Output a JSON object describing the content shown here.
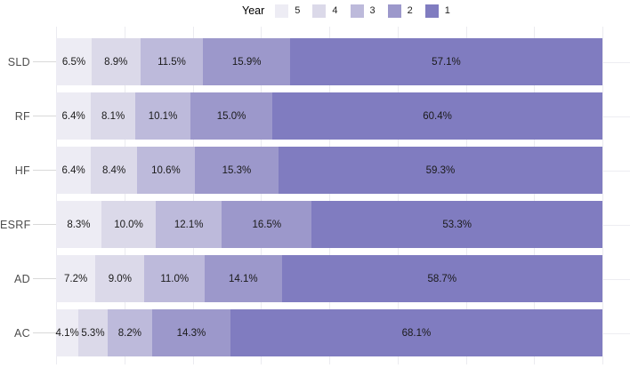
{
  "legend": {
    "title": "Year",
    "entries": [
      {
        "label": "5",
        "color": "#EDECF4"
      },
      {
        "label": "4",
        "color": "#DBD9E9"
      },
      {
        "label": "3",
        "color": "#BDBADB"
      },
      {
        "label": "2",
        "color": "#9C98CB"
      },
      {
        "label": "1",
        "color": "#807CC0"
      }
    ]
  },
  "chart_data": {
    "type": "bar",
    "orientation": "horizontal",
    "stacked": true,
    "stack_unit": "percent",
    "title": "",
    "xlabel": "",
    "ylabel": "",
    "xlim": [
      0,
      100
    ],
    "grid": true,
    "gridline_step_pct": 12.5,
    "legend_title": "Year",
    "legend_position": "top",
    "categories": [
      "SLD",
      "RF",
      "HF",
      "ESRF",
      "AD",
      "AC"
    ],
    "series": [
      {
        "name": "5",
        "color": "#EDECF4",
        "values": [
          6.5,
          6.4,
          6.4,
          8.3,
          7.2,
          4.1
        ],
        "labels": [
          "6.5%",
          "6.4%",
          "6.4%",
          "8.3%",
          "7.2%",
          "4.1%"
        ]
      },
      {
        "name": "4",
        "color": "#DBD9E9",
        "values": [
          8.9,
          8.1,
          8.4,
          10.0,
          9.0,
          5.3
        ],
        "labels": [
          "8.9%",
          "8.1%",
          "8.4%",
          "10.0%",
          "9.0%",
          "5.3%"
        ]
      },
      {
        "name": "3",
        "color": "#BDBADB",
        "values": [
          11.5,
          10.1,
          10.6,
          12.1,
          11.0,
          8.2
        ],
        "labels": [
          "11.5%",
          "10.1%",
          "10.6%",
          "12.1%",
          "11.0%",
          "8.2%"
        ]
      },
      {
        "name": "2",
        "color": "#9C98CB",
        "values": [
          15.9,
          15.0,
          15.3,
          16.5,
          14.1,
          14.3
        ],
        "labels": [
          "15.9%",
          "15.0%",
          "15.3%",
          "16.5%",
          "14.1%",
          "14.3%"
        ]
      },
      {
        "name": "1",
        "color": "#807CC0",
        "values": [
          57.1,
          60.4,
          59.3,
          53.3,
          58.7,
          68.1
        ],
        "labels": [
          "57.1%",
          "60.4%",
          "59.3%",
          "53.3%",
          "58.7%",
          "68.1%"
        ]
      }
    ]
  },
  "colors": {
    "background": "#ffffff",
    "gridline": "#ebebf0",
    "axis_tick": "#d9d9d9",
    "axis_label": "#4d4d4d",
    "value_label": "#1a1a1a"
  }
}
